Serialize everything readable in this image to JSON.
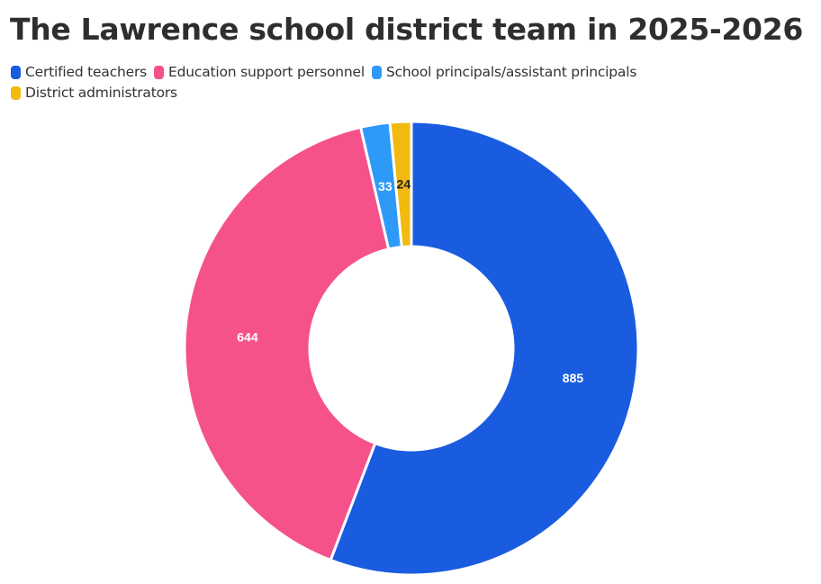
{
  "chart_data": {
    "type": "pie",
    "title": "The Lawrence school district team in 2025-2026",
    "legend_position": "top-left",
    "series": [
      {
        "name": "Certified teachers",
        "value": 885,
        "color": "#1a5ce0",
        "label_color": "#ffffff"
      },
      {
        "name": "Education support personnel",
        "value": 644,
        "color": "#f5528b",
        "label_color": "#ffffff"
      },
      {
        "name": "School principals/assistant principals",
        "value": 33,
        "color": "#2d9af7",
        "label_color": "#ffffff"
      },
      {
        "name": "District administrators",
        "value": 24,
        "color": "#f2b90f",
        "label_color": "#222222"
      }
    ]
  }
}
